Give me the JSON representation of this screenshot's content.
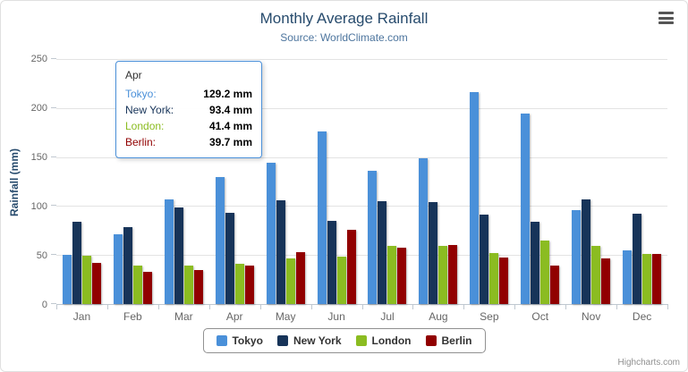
{
  "chart": {
    "title": "Monthly Average Rainfall",
    "subtitle": "Source: WorldClimate.com",
    "y_axis_title": "Rainfall (mm)",
    "credits": "Highcharts.com"
  },
  "icons": {
    "context_menu": "hamburger-menu-icon"
  },
  "tooltip": {
    "header": "Apr",
    "border_color": "#4a90d9",
    "rows": [
      {
        "name": "Tokyo:",
        "value": "129.2 mm",
        "color": "#4a90d9"
      },
      {
        "name": "New York:",
        "value": "93.4 mm",
        "color": "#173459"
      },
      {
        "name": "London:",
        "value": "41.4 mm",
        "color": "#8bbc21"
      },
      {
        "name": "Berlin:",
        "value": "39.7 mm",
        "color": "#910000"
      }
    ]
  },
  "chart_data": {
    "type": "bar",
    "orientation": "vertical",
    "title": "Monthly Average Rainfall",
    "subtitle": "Source: WorldClimate.com",
    "xlabel": "",
    "ylabel": "Rainfall (mm)",
    "ylim": [
      0,
      250
    ],
    "y_ticks": [
      0,
      50,
      100,
      150,
      200,
      250
    ],
    "grid": true,
    "legend_position": "bottom",
    "categories": [
      "Jan",
      "Feb",
      "Mar",
      "Apr",
      "May",
      "Jun",
      "Jul",
      "Aug",
      "Sep",
      "Oct",
      "Nov",
      "Dec"
    ],
    "series": [
      {
        "name": "Tokyo",
        "color": "#4a90d9",
        "values": [
          49.9,
          71.5,
          106.4,
          129.2,
          144.0,
          176.0,
          135.6,
          148.5,
          216.4,
          194.1,
          95.6,
          54.4
        ]
      },
      {
        "name": "New York",
        "color": "#173459",
        "values": [
          83.6,
          78.8,
          98.5,
          93.4,
          106.0,
          84.5,
          105.0,
          104.3,
          91.2,
          83.5,
          106.6,
          92.3
        ]
      },
      {
        "name": "London",
        "color": "#8bbc21",
        "values": [
          48.9,
          38.8,
          39.3,
          41.4,
          47.0,
          48.3,
          59.0,
          59.6,
          52.4,
          65.2,
          59.3,
          51.2
        ]
      },
      {
        "name": "Berlin",
        "color": "#910000",
        "values": [
          42.4,
          33.2,
          34.5,
          39.7,
          52.6,
          75.5,
          57.4,
          60.4,
          47.6,
          39.1,
          46.8,
          51.1
        ]
      }
    ]
  }
}
